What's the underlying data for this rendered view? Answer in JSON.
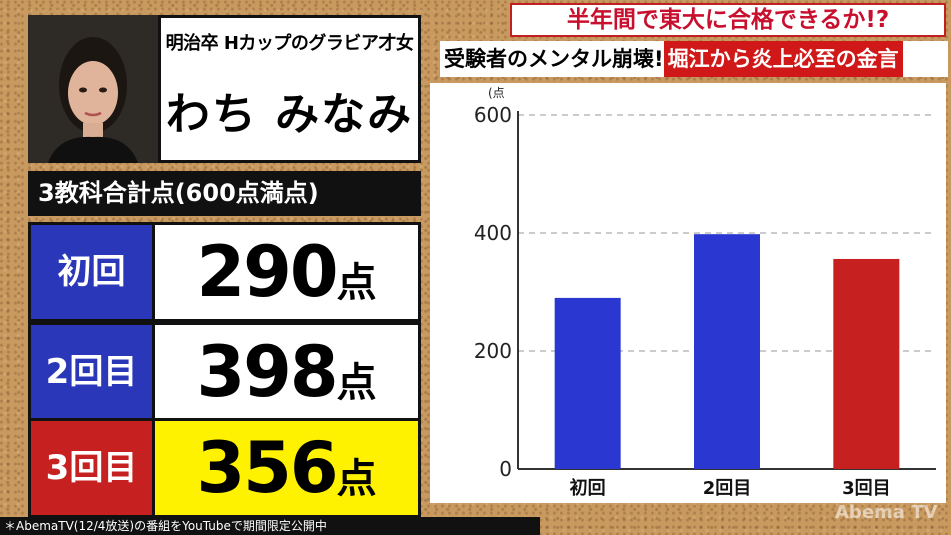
{
  "profile": {
    "subtitle": "明治卒 Hカップのグラビア才女",
    "name": "わち みなみ"
  },
  "scores": {
    "header": "3教科合計点(600点満点)",
    "rows": [
      {
        "label": "初回",
        "value": "290",
        "unit": "点",
        "label_bg": "#2a37b8",
        "value_bg": "#ffffff"
      },
      {
        "label": "2回目",
        "value": "398",
        "unit": "点",
        "label_bg": "#2a37b8",
        "value_bg": "#ffffff"
      },
      {
        "label": "3回目",
        "value": "356",
        "unit": "点",
        "label_bg": "#c62020",
        "value_bg": "#fff200"
      }
    ]
  },
  "headlines": {
    "top": "半年間で東大に合格できるか!?",
    "bottom_left": "受験者のメンタル崩壊!",
    "bottom_right": "堀江から炎上必至の金言"
  },
  "chart_data": {
    "type": "bar",
    "categories": [
      "初回",
      "2回目",
      "3回目"
    ],
    "values": [
      290,
      398,
      356
    ],
    "colors": [
      "#2a37d0",
      "#2a37d0",
      "#c62020"
    ],
    "ylabel": "(点",
    "ylim": [
      0,
      600
    ],
    "yticks": [
      0,
      200,
      400,
      600
    ],
    "grid": true
  },
  "footer": {
    "text": "＊AbemaTV(12/4放送)の番組をYouTubeで期間限定公開中"
  },
  "watermark": "Abema TV"
}
